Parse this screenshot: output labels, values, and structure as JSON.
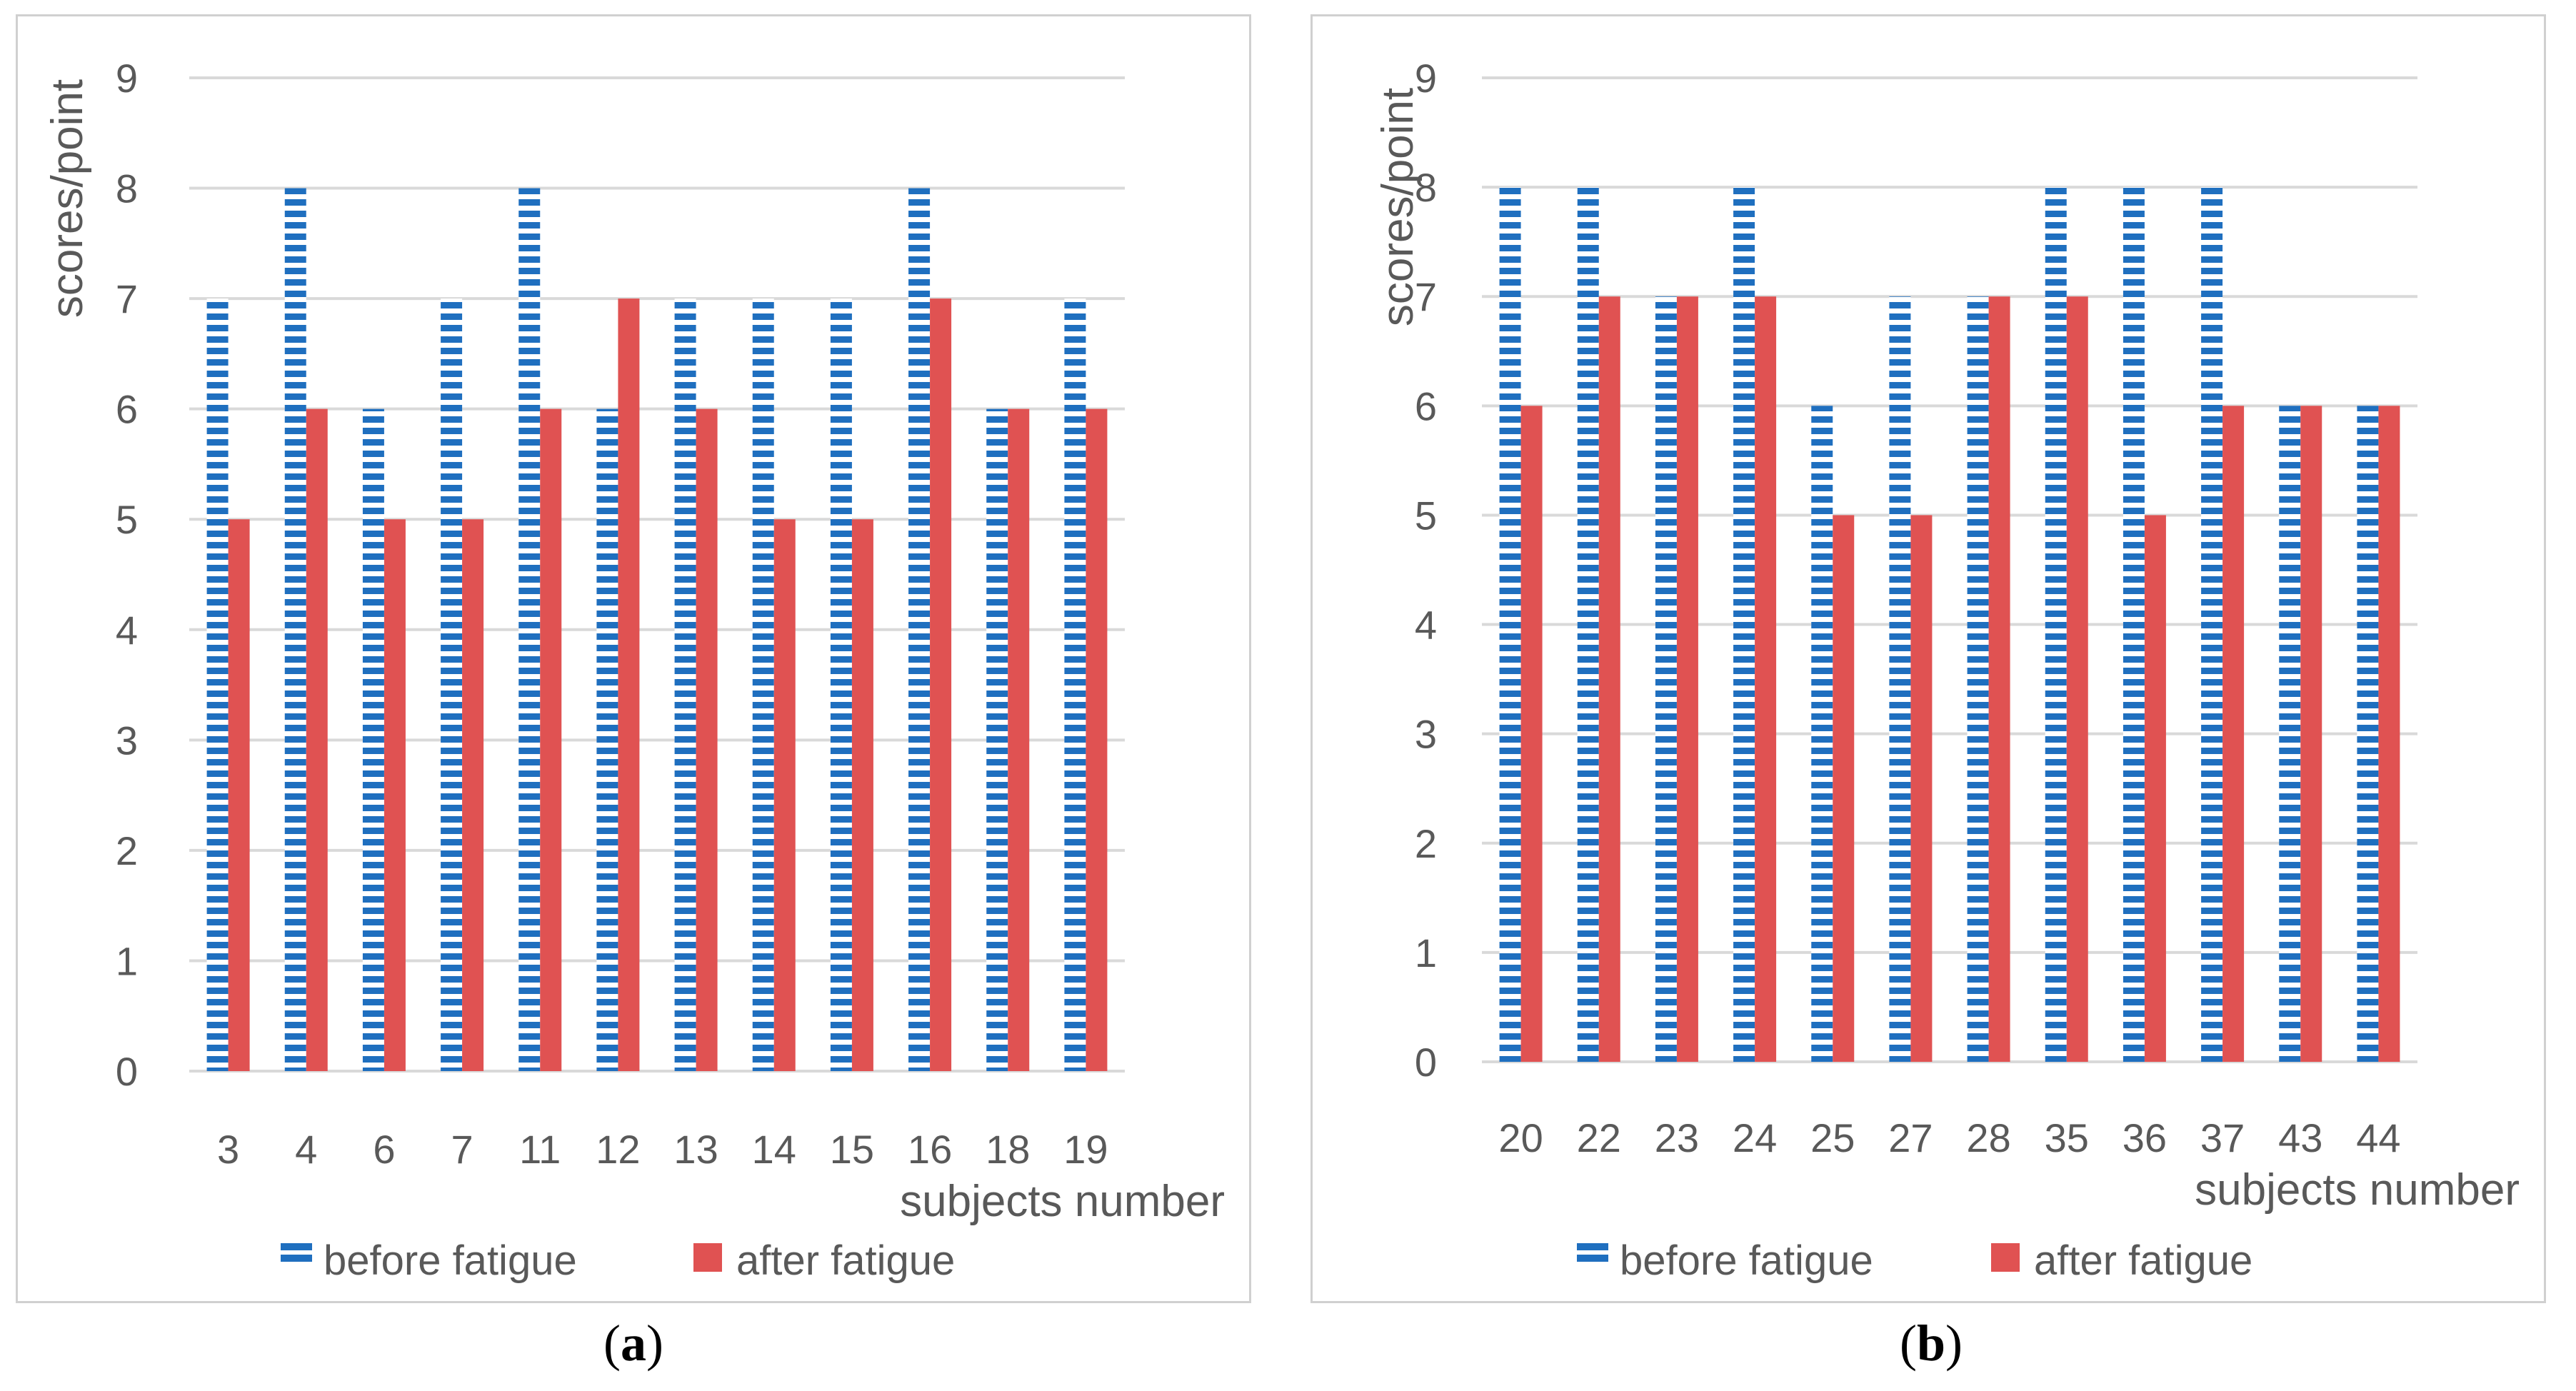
{
  "colors": {
    "before": "#1f6fbf",
    "after": "#e05252",
    "grid": "#d9d9d9",
    "text": "#595959"
  },
  "chart_data": [
    {
      "type": "bar",
      "panel_label": "a",
      "categories": [
        "3",
        "4",
        "6",
        "7",
        "11",
        "12",
        "13",
        "14",
        "15",
        "16",
        "18",
        "19"
      ],
      "series": [
        {
          "name": "before fatigue",
          "values": [
            7,
            8,
            6,
            7,
            8,
            6,
            7,
            7,
            7,
            8,
            6,
            7
          ]
        },
        {
          "name": "after fatigue",
          "values": [
            5,
            6,
            5,
            5,
            6,
            7,
            6,
            5,
            5,
            7,
            6,
            6
          ]
        }
      ],
      "yticks": [
        "0",
        "1",
        "2",
        "3",
        "4",
        "5",
        "6",
        "7",
        "8",
        "9"
      ],
      "ylim": [
        0,
        9
      ],
      "xlabel": "subjects number",
      "ylabel": "scores/point",
      "legend_position": "bottom",
      "grid": true
    },
    {
      "type": "bar",
      "panel_label": "b",
      "categories": [
        "20",
        "22",
        "23",
        "24",
        "25",
        "27",
        "28",
        "35",
        "36",
        "37",
        "43",
        "44"
      ],
      "series": [
        {
          "name": "before fatigue",
          "values": [
            8,
            8,
            7,
            8,
            6,
            7,
            7,
            8,
            8,
            8,
            6,
            6
          ]
        },
        {
          "name": "after fatigue",
          "values": [
            6,
            7,
            7,
            7,
            5,
            5,
            7,
            7,
            5,
            6,
            6,
            6
          ]
        }
      ],
      "yticks": [
        "0",
        "1",
        "2",
        "3",
        "4",
        "5",
        "6",
        "7",
        "8",
        "9"
      ],
      "ylim": [
        0,
        9
      ],
      "xlabel": "subjects number",
      "ylabel": "scores/point",
      "legend_position": "bottom",
      "grid": true
    }
  ]
}
